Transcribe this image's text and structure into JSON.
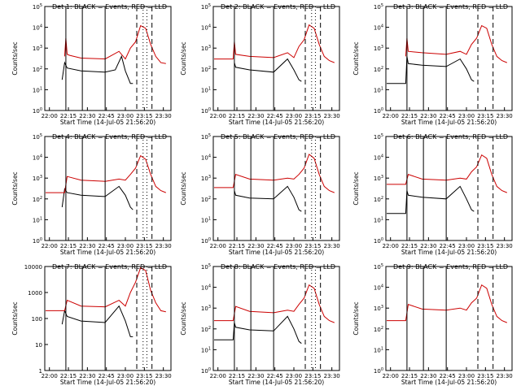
{
  "figure": {
    "xlabel": "Start Time (14-Jul-05 21:56:20)",
    "ylabel": "Counts/sec",
    "colors": {
      "events": "#000000",
      "lld": "#cc0000",
      "axes": "#000000",
      "background": "#ffffff"
    }
  },
  "chart_data": [
    {
      "type": "line",
      "title": "Det 1: BLACK = Events, RED = LLD",
      "ylabel": "Counts/sec",
      "xlabel": "Start Time (14-Jul-05 21:56:20)",
      "x_ticks": [
        "22:00",
        "22:15",
        "22:30",
        "22:45",
        "23:00",
        "23:15",
        "23:30"
      ],
      "x_range": [
        "21:56:20",
        "23:36"
      ],
      "y_scale": "log",
      "y_ticks": [
        "10^0",
        "10^1",
        "10^2",
        "10^3",
        "10^4",
        "10^5"
      ],
      "ylim": [
        1,
        100000
      ],
      "vlines_solid": [
        "22:13",
        "22:26",
        "22:44"
      ],
      "vlines_dashed": [
        "23:09",
        "23:21"
      ],
      "vlines_dotted": [
        "23:14",
        "23:17"
      ],
      "series": [
        {
          "name": "Events",
          "x": [
            "22:10",
            "22:12",
            "22:14",
            "22:25",
            "22:44",
            "22:52",
            "22:57",
            "23:00",
            "23:04",
            "23:06"
          ],
          "values": [
            30,
            200,
            110,
            80,
            70,
            90,
            400,
            80,
            20,
            20
          ]
        },
        {
          "name": "LLD",
          "x": [
            "22:12",
            "22:13",
            "22:14",
            "22:16",
            "22:25",
            "22:44",
            "22:55",
            "23:00",
            "23:04",
            "23:08",
            "23:12",
            "23:16",
            "23:20",
            "23:24",
            "23:28",
            "23:32"
          ],
          "values": [
            400,
            3000,
            500,
            450,
            330,
            300,
            700,
            300,
            1000,
            2000,
            12000,
            9000,
            1500,
            400,
            200,
            180
          ]
        }
      ]
    },
    {
      "type": "line",
      "title": "Det 2: BLACK = Events, RED = LLD",
      "ylabel": "Counts/sec",
      "xlabel": "Start Time (14-Jul-05 21:56:20)",
      "x_ticks": [
        "22:00",
        "22:15",
        "22:30",
        "22:45",
        "23:00",
        "23:15",
        "23:30"
      ],
      "x_range": [
        "21:56:20",
        "23:36"
      ],
      "y_scale": "log",
      "y_ticks": [
        "10^0",
        "10^1",
        "10^2",
        "10^3",
        "10^4",
        "10^5"
      ],
      "ylim": [
        1,
        100000
      ],
      "vlines_solid": [
        "22:13",
        "22:26",
        "22:44"
      ],
      "vlines_dashed": [
        "23:09",
        "23:21"
      ],
      "vlines_dotted": [
        "23:14",
        "23:17"
      ],
      "series": [
        {
          "name": "Events",
          "x": [
            "22:13",
            "22:14",
            "22:25",
            "22:44",
            "22:55",
            "23:00",
            "23:04",
            "23:06"
          ],
          "values": [
            200,
            120,
            90,
            70,
            300,
            90,
            30,
            25
          ]
        },
        {
          "name": "LLD",
          "x": [
            "21:57",
            "22:12",
            "22:13",
            "22:14",
            "22:25",
            "22:44",
            "22:55",
            "23:00",
            "23:04",
            "23:08",
            "23:12",
            "23:16",
            "23:20",
            "23:24",
            "23:28",
            "23:32"
          ],
          "values": [
            300,
            300,
            2000,
            500,
            400,
            350,
            600,
            350,
            1200,
            2500,
            13000,
            9000,
            1500,
            400,
            250,
            200
          ]
        }
      ]
    },
    {
      "type": "line",
      "title": "Det 3: BLACK = Events, RED = LLD",
      "ylabel": "Counts/sec",
      "xlabel": "Start Time (14-Jul-05 21:56:20)",
      "x_ticks": [
        "22:00",
        "22:15",
        "22:30",
        "22:45",
        "23:00",
        "23:15",
        "23:30"
      ],
      "x_range": [
        "21:56:20",
        "23:36"
      ],
      "y_scale": "log",
      "y_ticks": [
        "10^0",
        "10^1",
        "10^2",
        "10^3",
        "10^4",
        "10^5"
      ],
      "ylim": [
        1,
        100000
      ],
      "vlines_solid": [
        "22:13",
        "22:26",
        "22:44"
      ],
      "vlines_dashed": [
        "23:09",
        "23:21"
      ],
      "vlines_dotted": [],
      "series": [
        {
          "name": "Events",
          "x": [
            "21:57",
            "22:12",
            "22:13",
            "22:14",
            "22:25",
            "22:44",
            "22:55",
            "23:00",
            "23:04",
            "23:06"
          ],
          "values": [
            20,
            20,
            400,
            180,
            150,
            130,
            300,
            100,
            30,
            25
          ]
        },
        {
          "name": "LLD",
          "x": [
            "22:12",
            "22:13",
            "22:14",
            "22:25",
            "22:44",
            "22:55",
            "23:00",
            "23:04",
            "23:08",
            "23:12",
            "23:16",
            "23:20",
            "23:24",
            "23:28",
            "23:32"
          ],
          "values": [
            400,
            3000,
            700,
            600,
            500,
            700,
            500,
            1500,
            3000,
            12000,
            9000,
            1500,
            400,
            250,
            200
          ]
        }
      ]
    },
    {
      "type": "line",
      "title": "Det 4: BLACK = Events, RED = LLD",
      "ylabel": "Counts/sec",
      "xlabel": "Start Time (14-Jul-05 21:56:20)",
      "x_ticks": [
        "22:00",
        "22:15",
        "22:30",
        "22:45",
        "23:00",
        "23:15",
        "23:30"
      ],
      "x_range": [
        "21:56:20",
        "23:36"
      ],
      "y_scale": "log",
      "y_ticks": [
        "10^0",
        "10^1",
        "10^2",
        "10^3",
        "10^4",
        "10^5"
      ],
      "ylim": [
        1,
        100000
      ],
      "vlines_solid": [
        "22:13",
        "22:26",
        "22:44"
      ],
      "vlines_dashed": [
        "23:09",
        "23:21"
      ],
      "vlines_dotted": [
        "23:14",
        "23:17"
      ],
      "series": [
        {
          "name": "Events",
          "x": [
            "22:10",
            "22:12",
            "22:14",
            "22:25",
            "22:44",
            "22:55",
            "23:00",
            "23:04",
            "23:06"
          ],
          "values": [
            40,
            300,
            200,
            150,
            130,
            400,
            150,
            40,
            30
          ]
        },
        {
          "name": "LLD",
          "x": [
            "21:57",
            "22:12",
            "22:14",
            "22:25",
            "22:44",
            "22:55",
            "23:00",
            "23:04",
            "23:08",
            "23:12",
            "23:16",
            "23:20",
            "23:24",
            "23:28",
            "23:32"
          ],
          "values": [
            200,
            200,
            1200,
            800,
            700,
            900,
            800,
            1500,
            3000,
            12000,
            8000,
            1500,
            400,
            250,
            200
          ]
        }
      ]
    },
    {
      "type": "line",
      "title": "Det 5: BLACK = Events, RED = LLD",
      "ylabel": "Counts/sec",
      "xlabel": "Start Time (14-Jul-05 21:56:20)",
      "x_ticks": [
        "22:00",
        "22:15",
        "22:30",
        "22:45",
        "23:00",
        "23:15",
        "23:30"
      ],
      "x_range": [
        "21:56:20",
        "23:36"
      ],
      "y_scale": "log",
      "y_ticks": [
        "10^0",
        "10^1",
        "10^2",
        "10^3",
        "10^4",
        "10^5"
      ],
      "ylim": [
        1,
        100000
      ],
      "vlines_solid": [
        "22:13",
        "22:26",
        "22:44"
      ],
      "vlines_dashed": [
        "23:09",
        "23:21"
      ],
      "vlines_dotted": [
        "23:14",
        "23:17"
      ],
      "series": [
        {
          "name": "Events",
          "x": [
            "22:13",
            "22:14",
            "22:25",
            "22:44",
            "22:55",
            "23:00",
            "23:04",
            "23:06"
          ],
          "values": [
            250,
            150,
            110,
            100,
            400,
            120,
            30,
            25
          ]
        },
        {
          "name": "LLD",
          "x": [
            "21:57",
            "22:12",
            "22:14",
            "22:25",
            "22:44",
            "22:55",
            "23:00",
            "23:04",
            "23:08",
            "23:12",
            "23:16",
            "23:20",
            "23:24",
            "23:28",
            "23:32"
          ],
          "values": [
            350,
            350,
            1500,
            900,
            800,
            1000,
            900,
            1500,
            3000,
            14000,
            9000,
            1500,
            400,
            250,
            200
          ]
        }
      ]
    },
    {
      "type": "line",
      "title": "Det 6: BLACK = Events, RED = LLD",
      "ylabel": "Counts/sec",
      "xlabel": "Start Time (14-Jul-05 21:56:20)",
      "x_ticks": [
        "22:00",
        "22:15",
        "22:30",
        "22:45",
        "23:00",
        "23:15",
        "23:30"
      ],
      "x_range": [
        "21:56:20",
        "23:36"
      ],
      "y_scale": "log",
      "y_ticks": [
        "10^0",
        "10^1",
        "10^2",
        "10^3",
        "10^4",
        "10^5"
      ],
      "ylim": [
        1,
        100000
      ],
      "vlines_solid": [
        "22:13",
        "22:26",
        "22:44"
      ],
      "vlines_dashed": [
        "23:09",
        "23:21"
      ],
      "vlines_dotted": [],
      "series": [
        {
          "name": "Events",
          "x": [
            "21:57",
            "22:12",
            "22:13",
            "22:14",
            "22:25",
            "22:44",
            "22:55",
            "23:00",
            "23:04",
            "23:06"
          ],
          "values": [
            20,
            20,
            250,
            150,
            120,
            100,
            400,
            100,
            30,
            25
          ]
        },
        {
          "name": "LLD",
          "x": [
            "21:57",
            "22:12",
            "22:14",
            "22:25",
            "22:44",
            "22:55",
            "23:00",
            "23:04",
            "23:08",
            "23:12",
            "23:16",
            "23:20",
            "23:24",
            "23:28",
            "23:32"
          ],
          "values": [
            500,
            500,
            1500,
            900,
            800,
            1000,
            900,
            2000,
            3500,
            13000,
            9000,
            1500,
            400,
            250,
            200
          ]
        }
      ]
    },
    {
      "type": "line",
      "title": "Det 7: BLACK = Events, RED = LLD",
      "ylabel": "Counts/sec",
      "xlabel": "Start Time (14-Jul-05 21:56:20)",
      "x_ticks": [
        "22:00",
        "22:15",
        "22:30",
        "22:45",
        "23:00",
        "23:15",
        "23:30"
      ],
      "x_range": [
        "21:56:20",
        "23:36"
      ],
      "y_scale": "log",
      "y_ticks": [
        "1",
        "10",
        "100",
        "1000",
        "10000"
      ],
      "ylim": [
        1,
        10000
      ],
      "vlines_solid": [
        "22:13",
        "22:26",
        "22:44"
      ],
      "vlines_dashed": [
        "23:09",
        "23:21"
      ],
      "vlines_dotted": [
        "23:14",
        "23:17"
      ],
      "series": [
        {
          "name": "Events",
          "x": [
            "22:10",
            "22:12",
            "22:14",
            "22:25",
            "22:44",
            "22:55",
            "23:00",
            "23:04",
            "23:06"
          ],
          "values": [
            60,
            200,
            120,
            80,
            70,
            300,
            80,
            20,
            20
          ]
        },
        {
          "name": "LLD",
          "x": [
            "21:57",
            "22:12",
            "22:14",
            "22:25",
            "22:44",
            "22:55",
            "23:00",
            "23:04",
            "23:08",
            "23:12",
            "23:16",
            "23:20",
            "23:24",
            "23:28",
            "23:32"
          ],
          "values": [
            200,
            200,
            500,
            300,
            280,
            500,
            300,
            1000,
            2500,
            9000,
            7000,
            1200,
            400,
            200,
            180
          ]
        }
      ]
    },
    {
      "type": "line",
      "title": "Det 8: BLACK = Events, RED = LLD",
      "ylabel": "Counts/sec",
      "xlabel": "Start Time (14-Jul-05 21:56:20)",
      "x_ticks": [
        "22:00",
        "22:15",
        "22:30",
        "22:45",
        "23:00",
        "23:15",
        "23:30"
      ],
      "x_range": [
        "21:56:20",
        "23:36"
      ],
      "y_scale": "log",
      "y_ticks": [
        "10^0",
        "10^1",
        "10^2",
        "10^3",
        "10^4",
        "10^5"
      ],
      "ylim": [
        1,
        100000
      ],
      "vlines_solid": [
        "22:13",
        "22:26",
        "22:44"
      ],
      "vlines_dashed": [
        "23:09",
        "23:21"
      ],
      "vlines_dotted": [
        "23:14",
        "23:17"
      ],
      "series": [
        {
          "name": "Events",
          "x": [
            "21:57",
            "22:12",
            "22:13",
            "22:14",
            "22:25",
            "22:44",
            "22:55",
            "23:00",
            "23:04",
            "23:06"
          ],
          "values": [
            30,
            30,
            200,
            120,
            90,
            80,
            400,
            100,
            25,
            20
          ]
        },
        {
          "name": "LLD",
          "x": [
            "21:57",
            "22:12",
            "22:14",
            "22:25",
            "22:44",
            "22:55",
            "23:00",
            "23:04",
            "23:08",
            "23:12",
            "23:16",
            "23:20",
            "23:24",
            "23:28",
            "23:32"
          ],
          "values": [
            250,
            250,
            1200,
            700,
            600,
            800,
            700,
            1500,
            3000,
            13000,
            9000,
            1500,
            400,
            250,
            200
          ]
        }
      ]
    },
    {
      "type": "line",
      "title": "Det 9: BLACK = Events, RED = LLD",
      "ylabel": "Counts/sec",
      "xlabel": "Start Time (14-Jul-05 21:56:20)",
      "x_ticks": [
        "22:00",
        "22:15",
        "22:30",
        "22:45",
        "23:00",
        "23:15",
        "23:30"
      ],
      "x_range": [
        "21:56:20",
        "23:36"
      ],
      "y_scale": "log",
      "y_ticks": [
        "10^0",
        "10^1",
        "10^2",
        "10^3",
        "10^4",
        "10^5"
      ],
      "ylim": [
        1,
        100000
      ],
      "vlines_solid": [
        "22:13",
        "22:26",
        "22:44"
      ],
      "vlines_dashed": [
        "23:09",
        "23:21"
      ],
      "vlines_dotted": [],
      "series": [
        {
          "name": "LLD",
          "x": [
            "21:57",
            "22:12",
            "22:14",
            "22:25",
            "22:44",
            "22:55",
            "23:00",
            "23:04",
            "23:08",
            "23:12",
            "23:16",
            "23:20",
            "23:24",
            "23:28",
            "23:32"
          ],
          "values": [
            250,
            250,
            1500,
            900,
            800,
            1000,
            800,
            1800,
            3000,
            13000,
            9000,
            1500,
            400,
            250,
            200
          ]
        }
      ]
    }
  ]
}
